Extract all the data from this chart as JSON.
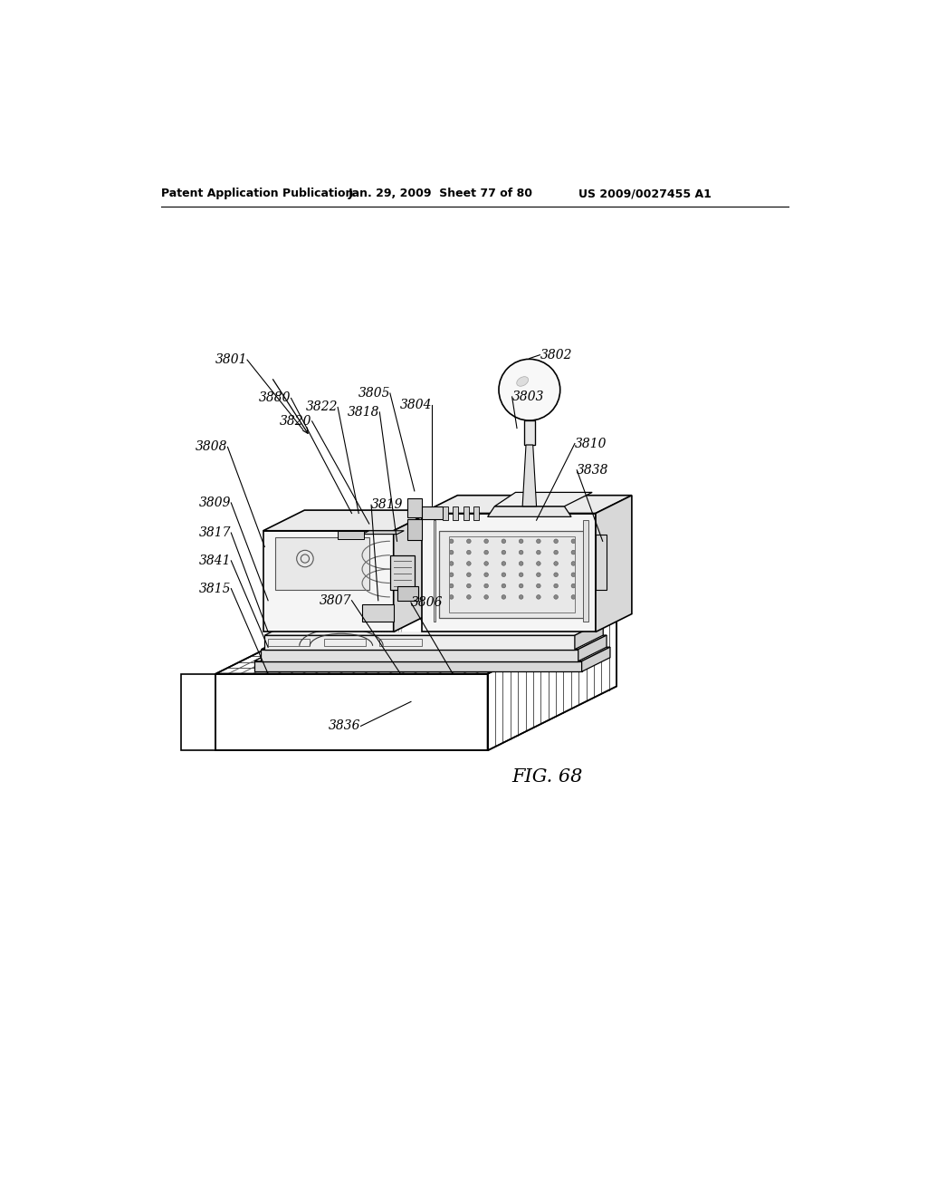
{
  "bg_color": "#ffffff",
  "header_left": "Patent Application Publication",
  "header_mid": "Jan. 29, 2009  Sheet 77 of 80",
  "header_right": "US 2009/0027455 A1",
  "fig_label": "FIG. 68",
  "line_color": "#000000",
  "text_color": "#000000",
  "lw_main": 1.2,
  "lw_thin": 0.7,
  "lw_header": 0.8
}
